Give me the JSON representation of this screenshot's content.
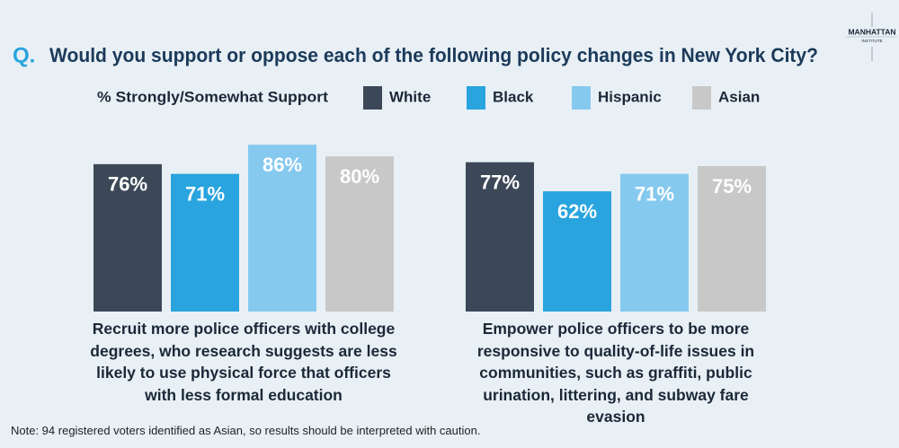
{
  "chart_data": {
    "type": "bar",
    "question_prefix": "Q.",
    "title": "Would you support or oppose each of the following policy changes in New York City?",
    "legend_title": "% Strongly/Somewhat Support",
    "categories": [
      "Recruit more police officers with college degrees, who research suggests are less likely to use physical force that officers with less formal education",
      "Empower police officers to be more responsive to quality-of-life issues in communities, such as graffiti, public urination, littering, and subway fare evasion"
    ],
    "series": [
      {
        "name": "White",
        "color": "#3c4858",
        "values": [
          76,
          77
        ],
        "value_labels": [
          "76%",
          "77%"
        ]
      },
      {
        "name": "Black",
        "color": "#29a4de",
        "values": [
          71,
          62
        ],
        "value_labels": [
          "71%",
          "62%"
        ]
      },
      {
        "name": "Hispanic",
        "color": "#86c9ef",
        "values": [
          86,
          71
        ],
        "value_labels": [
          "86%",
          "71%"
        ]
      },
      {
        "name": "Asian",
        "color": "#c8c8c8",
        "values": [
          80,
          75
        ],
        "value_labels": [
          "80%",
          "75%"
        ]
      }
    ],
    "note": "Note: 94 registered voters identified as Asian, so results should be interpreted with caution.",
    "logo": {
      "name": "MANHATTAN",
      "sub": "INSTITUTE"
    }
  }
}
